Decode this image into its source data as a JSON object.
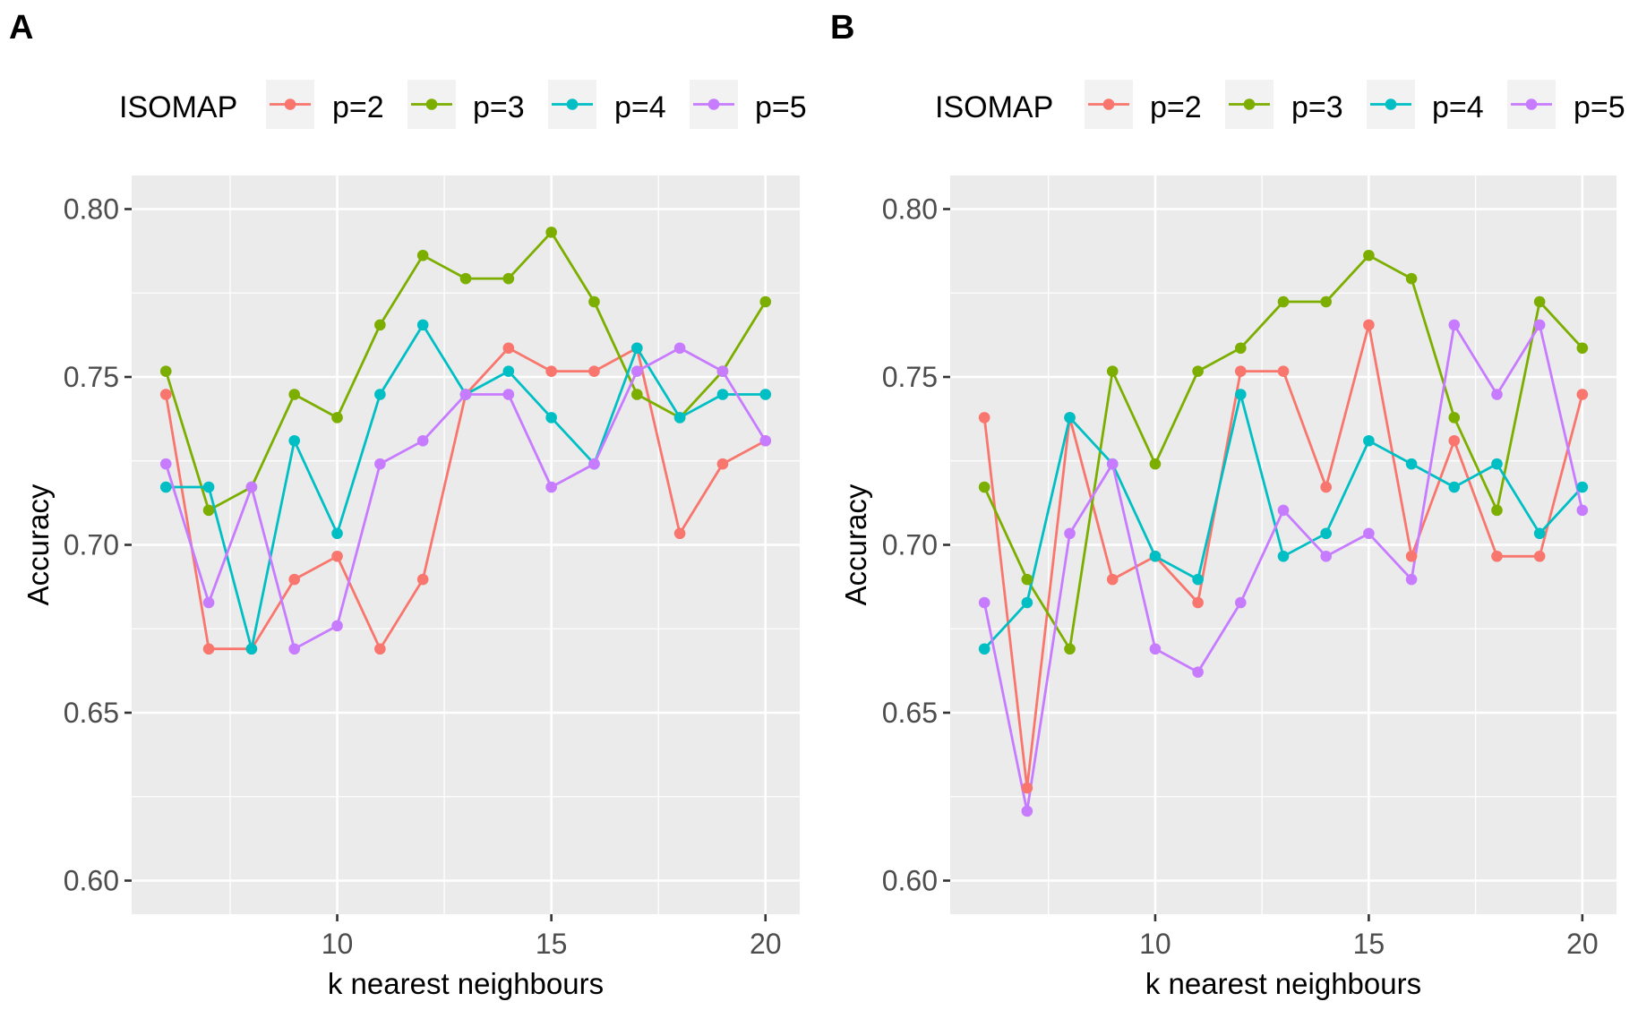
{
  "figure": {
    "legend_title": "ISOMAP",
    "colors": {
      "p=2": "#F8766D",
      "p=3": "#7CAE00",
      "p=4": "#00BFC4",
      "p=5": "#C77CFF"
    }
  },
  "chart_data": [
    {
      "panel": "A",
      "type": "line",
      "title": "",
      "xlabel": "k nearest neighbours",
      "ylabel": "Accuracy",
      "xlim": [
        5.2,
        20.8
      ],
      "ylim": [
        0.59,
        0.81
      ],
      "xticks": [
        10,
        15,
        20
      ],
      "xtick_labels": [
        "10",
        "15",
        "20"
      ],
      "yticks": [
        0.6,
        0.65,
        0.7,
        0.75,
        0.8
      ],
      "ytick_labels": [
        "0.60",
        "0.65",
        "0.70",
        "0.75",
        "0.80"
      ],
      "grid": true,
      "legend_position": "top",
      "legend_title": "ISOMAP",
      "x": [
        6,
        7,
        8,
        9,
        10,
        11,
        12,
        13,
        14,
        15,
        16,
        17,
        18,
        19,
        20
      ],
      "series": [
        {
          "name": "p=2",
          "color": "#F8766D",
          "values": [
            0.7448,
            0.669,
            0.669,
            0.6897,
            0.6966,
            0.669,
            0.6897,
            0.7448,
            0.7586,
            0.7517,
            0.7517,
            0.7586,
            0.7034,
            0.7241,
            0.731
          ]
        },
        {
          "name": "p=3",
          "color": "#7CAE00",
          "values": [
            0.7517,
            0.7103,
            0.7172,
            0.7448,
            0.7379,
            0.7655,
            0.7862,
            0.7793,
            0.7793,
            0.7931,
            0.7724,
            0.7448,
            0.7379,
            0.7517,
            0.7724
          ]
        },
        {
          "name": "p=4",
          "color": "#00BFC4",
          "values": [
            0.7172,
            0.7172,
            0.669,
            0.731,
            0.7034,
            0.7448,
            0.7655,
            0.7448,
            0.7517,
            0.7379,
            0.7241,
            0.7586,
            0.7379,
            0.7448,
            0.7448
          ]
        },
        {
          "name": "p=5",
          "color": "#C77CFF",
          "values": [
            0.7241,
            0.6828,
            0.7172,
            0.669,
            0.6759,
            0.7241,
            0.731,
            0.7448,
            0.7448,
            0.7172,
            0.7241,
            0.7517,
            0.7586,
            0.7517,
            0.731
          ]
        }
      ]
    },
    {
      "panel": "B",
      "type": "line",
      "title": "",
      "xlabel": "k nearest neighbours",
      "ylabel": "Accuracy",
      "xlim": [
        5.2,
        20.8
      ],
      "ylim": [
        0.59,
        0.81
      ],
      "xticks": [
        10,
        15,
        20
      ],
      "xtick_labels": [
        "10",
        "15",
        "20"
      ],
      "yticks": [
        0.6,
        0.65,
        0.7,
        0.75,
        0.8
      ],
      "ytick_labels": [
        "0.60",
        "0.65",
        "0.70",
        "0.75",
        "0.80"
      ],
      "grid": true,
      "legend_position": "top",
      "legend_title": "ISOMAP",
      "x": [
        6,
        7,
        8,
        9,
        10,
        11,
        12,
        13,
        14,
        15,
        16,
        17,
        18,
        19,
        20
      ],
      "series": [
        {
          "name": "p=2",
          "color": "#F8766D",
          "values": [
            0.7379,
            0.6276,
            0.7379,
            0.6897,
            0.6966,
            0.6828,
            0.7517,
            0.7517,
            0.7172,
            0.7655,
            0.6966,
            0.731,
            0.6966,
            0.6966,
            0.7448
          ]
        },
        {
          "name": "p=3",
          "color": "#7CAE00",
          "values": [
            0.7172,
            0.6897,
            0.669,
            0.7517,
            0.7241,
            0.7517,
            0.7586,
            0.7724,
            0.7724,
            0.7862,
            0.7793,
            0.7379,
            0.7103,
            0.7724,
            0.7586
          ]
        },
        {
          "name": "p=4",
          "color": "#00BFC4",
          "values": [
            0.669,
            0.6828,
            0.7379,
            0.7241,
            0.6966,
            0.6897,
            0.7448,
            0.6966,
            0.7034,
            0.731,
            0.7241,
            0.7172,
            0.7241,
            0.7034,
            0.7172
          ]
        },
        {
          "name": "p=5",
          "color": "#C77CFF",
          "values": [
            0.6828,
            0.6207,
            0.7034,
            0.7241,
            0.669,
            0.6621,
            0.6828,
            0.7103,
            0.6966,
            0.7034,
            0.6897,
            0.7655,
            0.7448,
            0.7655,
            0.7103
          ]
        }
      ]
    }
  ]
}
